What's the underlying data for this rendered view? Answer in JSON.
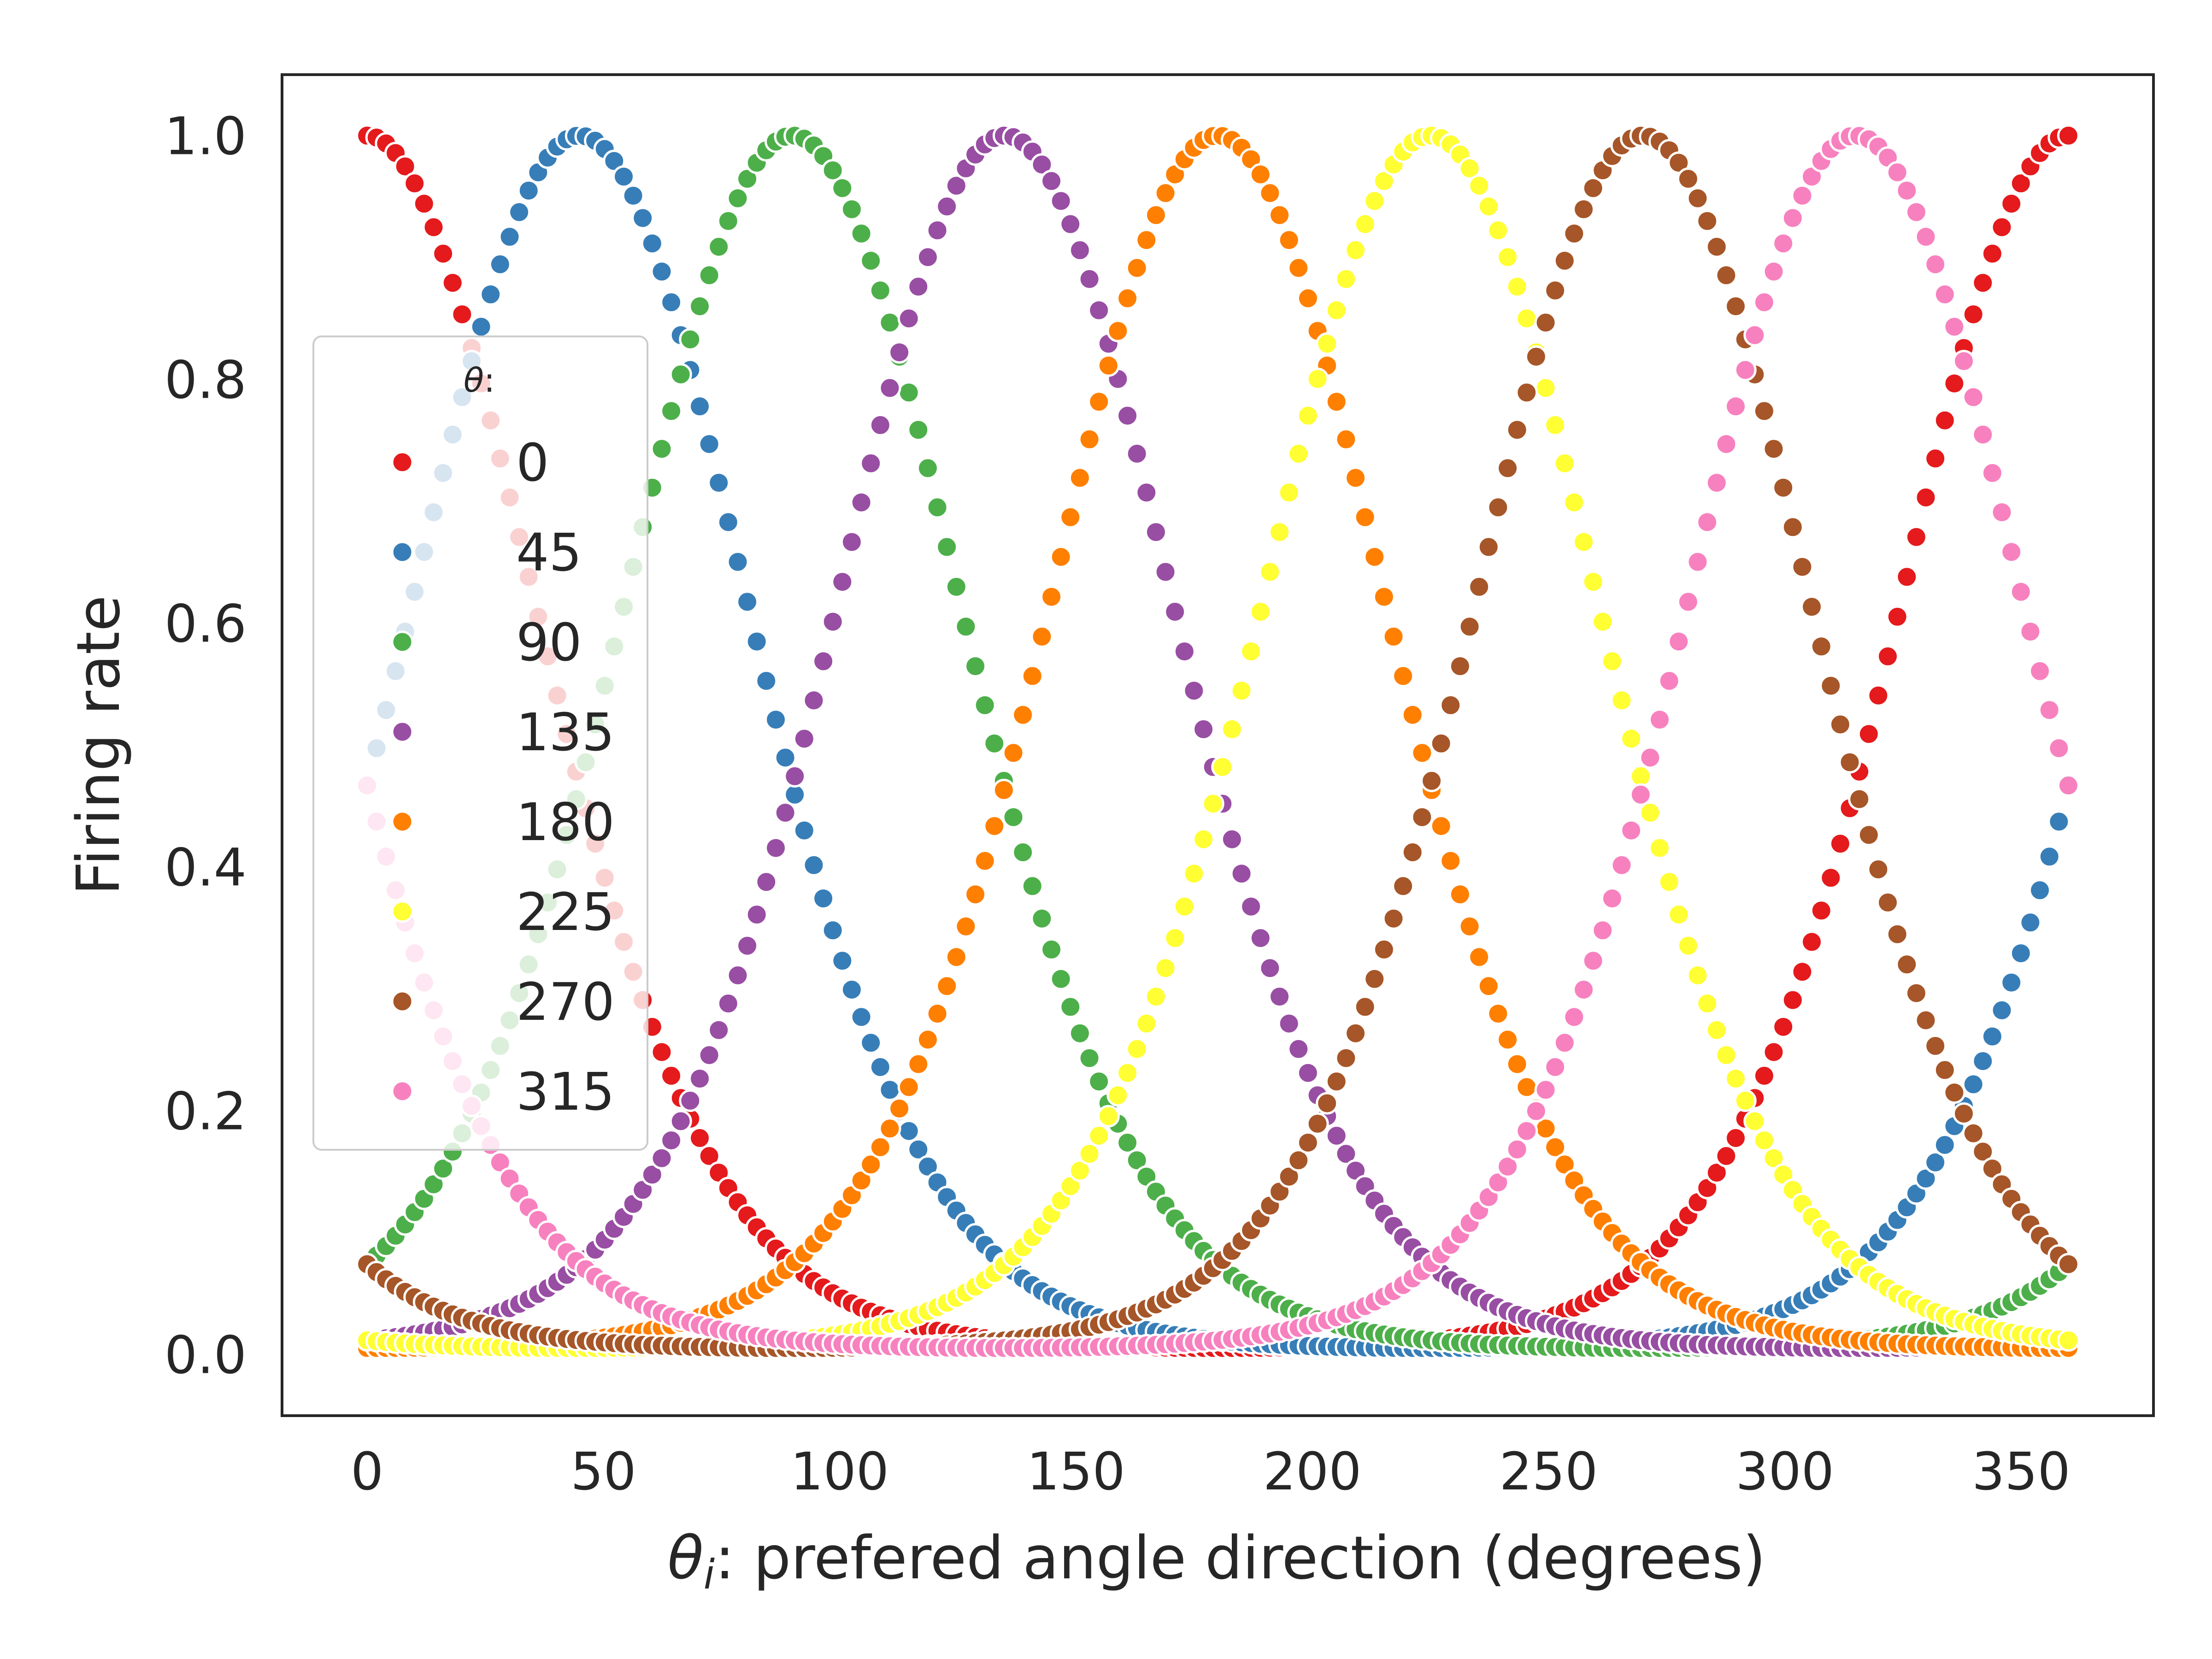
{
  "chart_data": {
    "type": "scatter",
    "xlabel_symbol": "θ",
    "xlabel_subscript": "i",
    "xlabel_text": ": prefered angle direction (degrees)",
    "ylabel": "Firing rate",
    "xlim": [
      -18,
      378
    ],
    "ylim": [
      -0.05,
      1.05
    ],
    "x_ticks": [
      0,
      50,
      100,
      150,
      200,
      250,
      300,
      350
    ],
    "x_tick_labels": [
      "0",
      "50",
      "100",
      "150",
      "200",
      "250",
      "300",
      "350"
    ],
    "y_ticks": [
      0.0,
      0.2,
      0.4,
      0.6,
      0.8,
      1.0
    ],
    "y_tick_labels": [
      "0.0",
      "0.2",
      "0.4",
      "0.6",
      "0.8",
      "1.0"
    ],
    "grid": false,
    "legend": {
      "title_symbol": "θ",
      "title_suffix": ":",
      "placement": "center-left"
    },
    "model": {
      "form": "exp(kappa*(cos(x - theta) - 1))",
      "kappa": 2.6,
      "x_start": 0,
      "x_end": 360,
      "n_points": 180
    },
    "series": [
      {
        "name": "0",
        "theta": 0,
        "color": "#e41a1c"
      },
      {
        "name": "45",
        "theta": 45,
        "color": "#377eb8"
      },
      {
        "name": "90",
        "theta": 90,
        "color": "#4daf4a"
      },
      {
        "name": "135",
        "theta": 135,
        "color": "#984ea3"
      },
      {
        "name": "180",
        "theta": 180,
        "color": "#ff7f00"
      },
      {
        "name": "225",
        "theta": 225,
        "color": "#ffff33"
      },
      {
        "name": "270",
        "theta": 270,
        "color": "#a65628"
      },
      {
        "name": "315",
        "theta": 315,
        "color": "#f781bf"
      }
    ]
  }
}
